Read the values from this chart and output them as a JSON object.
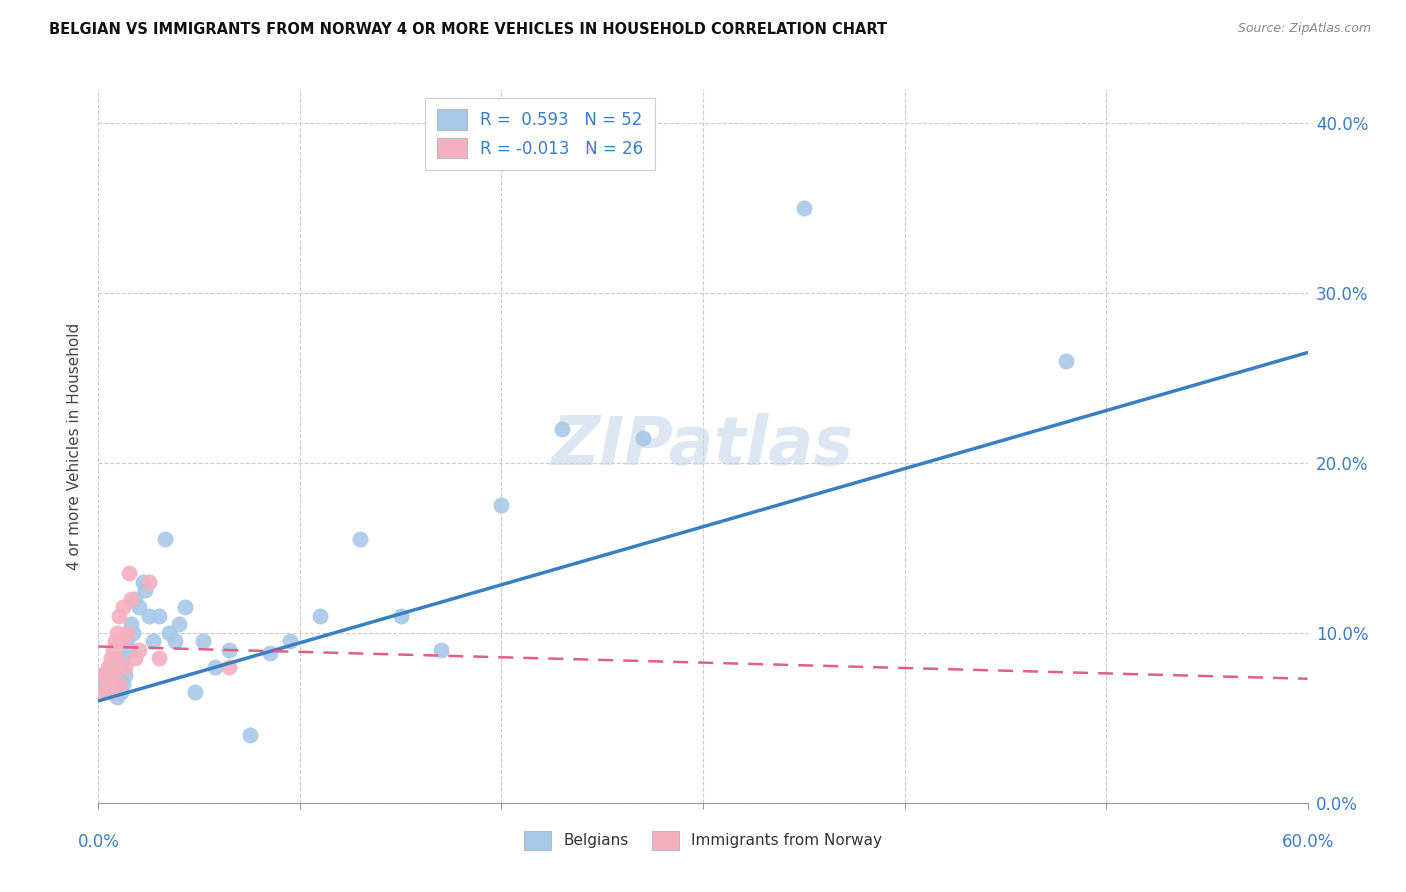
{
  "title": "BELGIAN VS IMMIGRANTS FROM NORWAY 4 OR MORE VEHICLES IN HOUSEHOLD CORRELATION CHART",
  "source": "Source: ZipAtlas.com",
  "ylabel": "4 or more Vehicles in Household",
  "xmin": 0.0,
  "xmax": 0.6,
  "ymin": 0.0,
  "ymax": 0.42,
  "blue_r": 0.593,
  "blue_n": 52,
  "pink_r": -0.013,
  "pink_n": 26,
  "blue_color": "#a8c8e8",
  "pink_color": "#f4b0c0",
  "blue_line_color": "#3a7fc1",
  "pink_line_color": "#e06080",
  "watermark": "ZIPatlas",
  "blue_line_x0": 0.0,
  "blue_line_y0": 0.06,
  "blue_line_x1": 0.6,
  "blue_line_y1": 0.265,
  "pink_line_x0": 0.0,
  "pink_line_x1": 0.6,
  "pink_line_y0": 0.092,
  "pink_line_y1": 0.073,
  "belgians_x": [
    0.002,
    0.003,
    0.004,
    0.005,
    0.005,
    0.006,
    0.006,
    0.007,
    0.007,
    0.008,
    0.008,
    0.009,
    0.009,
    0.01,
    0.01,
    0.011,
    0.011,
    0.012,
    0.012,
    0.013,
    0.014,
    0.015,
    0.016,
    0.017,
    0.018,
    0.02,
    0.022,
    0.023,
    0.025,
    0.027,
    0.03,
    0.033,
    0.035,
    0.038,
    0.04,
    0.043,
    0.048,
    0.052,
    0.058,
    0.065,
    0.075,
    0.085,
    0.095,
    0.11,
    0.13,
    0.15,
    0.17,
    0.2,
    0.23,
    0.27,
    0.35,
    0.48
  ],
  "belgians_y": [
    0.075,
    0.07,
    0.068,
    0.072,
    0.065,
    0.08,
    0.068,
    0.075,
    0.065,
    0.072,
    0.068,
    0.075,
    0.062,
    0.08,
    0.072,
    0.078,
    0.065,
    0.085,
    0.07,
    0.075,
    0.095,
    0.09,
    0.105,
    0.1,
    0.12,
    0.115,
    0.13,
    0.125,
    0.11,
    0.095,
    0.11,
    0.155,
    0.1,
    0.095,
    0.105,
    0.115,
    0.065,
    0.095,
    0.08,
    0.09,
    0.04,
    0.088,
    0.095,
    0.11,
    0.155,
    0.11,
    0.09,
    0.175,
    0.22,
    0.215,
    0.35,
    0.26
  ],
  "norway_x": [
    0.002,
    0.003,
    0.004,
    0.005,
    0.005,
    0.006,
    0.006,
    0.007,
    0.007,
    0.008,
    0.008,
    0.009,
    0.009,
    0.01,
    0.01,
    0.011,
    0.012,
    0.013,
    0.014,
    0.015,
    0.016,
    0.018,
    0.02,
    0.025,
    0.03,
    0.065
  ],
  "norway_y": [
    0.065,
    0.075,
    0.075,
    0.08,
    0.07,
    0.085,
    0.065,
    0.09,
    0.075,
    0.095,
    0.08,
    0.1,
    0.085,
    0.11,
    0.07,
    0.095,
    0.115,
    0.08,
    0.1,
    0.135,
    0.12,
    0.085,
    0.09,
    0.13,
    0.085,
    0.08
  ]
}
